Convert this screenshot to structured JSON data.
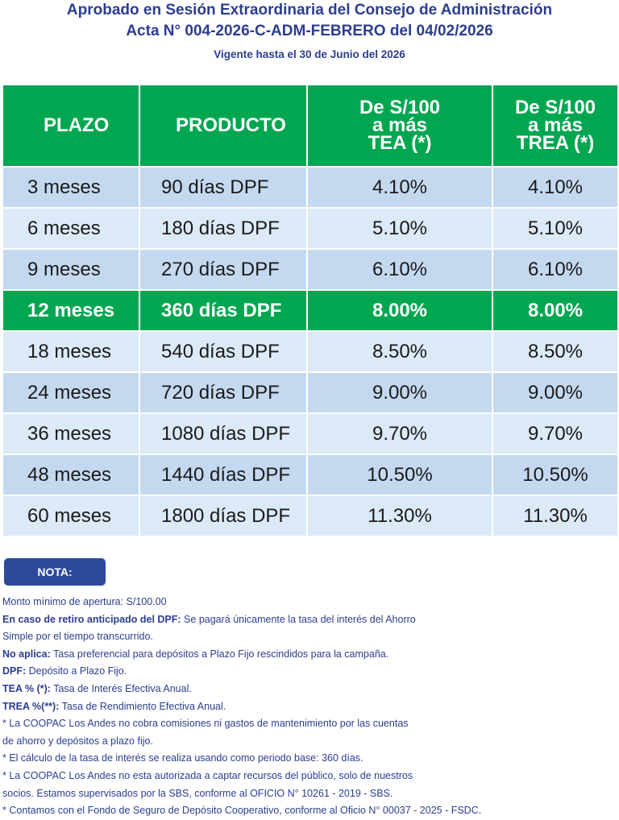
{
  "header": {
    "line1": "Aprobado en Sesión Extraordinaria del Consejo de Administración",
    "line2": "Acta N° 004-2026-C-ADM-FEBRERO del 04/02/2026",
    "validity": "Vigente hasta el 30 de Junio del 2026"
  },
  "table": {
    "headers": {
      "plazo": "PLAZO",
      "producto": "PRODUCTO",
      "tea": [
        "De S/100",
        "a más",
        "TEA (*)"
      ],
      "trea": [
        "De S/100",
        "a más",
        "TREA (*)"
      ]
    },
    "rows": [
      {
        "plazo": "3 meses",
        "producto": "90 días DPF",
        "tea": "4.10%",
        "trea": "4.10%"
      },
      {
        "plazo": "6 meses",
        "producto": "180 días DPF",
        "tea": "5.10%",
        "trea": "5.10%"
      },
      {
        "plazo": "9 meses",
        "producto": "270 días DPF",
        "tea": "6.10%",
        "trea": "6.10%"
      },
      {
        "plazo": "12 meses",
        "producto": "360 días DPF",
        "tea": "8.00%",
        "trea": "8.00%"
      },
      {
        "plazo": "18 meses",
        "producto": "540 días DPF",
        "tea": "8.50%",
        "trea": "8.50%"
      },
      {
        "plazo": "24 meses",
        "producto": "720 días DPF",
        "tea": "9.00%",
        "trea": "9.00%"
      },
      {
        "plazo": "36 meses",
        "producto": "1080 días DPF",
        "tea": "9.70%",
        "trea": "9.70%"
      },
      {
        "plazo": "48 meses",
        "producto": "1440 días DPF",
        "tea": "10.50%",
        "trea": "10.50%"
      },
      {
        "plazo": "60 meses",
        "producto": "1800 días DPF",
        "tea": "11.30%",
        "trea": "11.30%"
      }
    ]
  },
  "colors": {
    "green": "#00a650",
    "navy": "#2c3d8f",
    "row_odd": "#c4d9f0",
    "row_even": "#dce9f7"
  },
  "nota": {
    "label": "NOTA:",
    "min_amount": "Monto mínimo de apertura: S/100.00",
    "early_bold": "En caso de retiro anticipado del DPF:",
    "early_text1": " Se pagará únicamente la tasa del interés del Ahorro",
    "early_text2": "Simple por el tiempo transcurrido.",
    "noaplica_bold": "No aplica:",
    "noaplica_text": " Tasa preferencial para depósitos a Plazo Fijo rescindidos para la campaña.",
    "dpf_bold": "DPF:",
    "dpf_text": " Depósito a Plazo Fijo.",
    "tea_bold": "TEA % (*):",
    "tea_text": " Tasa de Interés Efectiva Anual.",
    "trea_bold": "TREA %(**):",
    "trea_text": " Tasa de Rendimiento Efectiva Anual.",
    "bullet1a": "* La COOPAC Los Andes no cobra comisiones ni gastos de mantenimiento por las cuentas",
    "bullet1b": "de ahorro y depósitos a plazo fijo.",
    "bullet2": "* El cálculo de la tasa de interés se realiza usando como periodo base: 360 días.",
    "bullet3a": "* La COOPAC Los Andes no esta autorizada a captar recursos del público, solo de nuestros",
    "bullet3b": "socios. Estamos supervisados por la SBS, conforme al OFICIO N° 10261 - 2019 - SBS.",
    "bullet4": "* Contamos con el Fondo de Seguro de Depósito Cooperativo, conforme al Oficio N° 00037 - 2025 - FSDC."
  }
}
